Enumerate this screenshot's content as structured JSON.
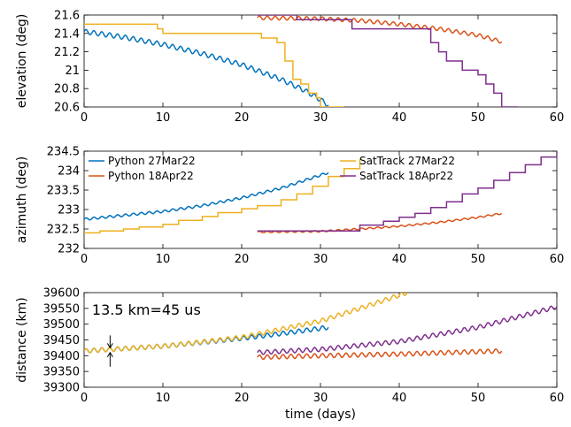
{
  "colors": {
    "python_27mar": "#0072bd",
    "python_18apr": "#d95319",
    "sattrack_27mar": "#edb120",
    "sattrack_18apr": "#7e2f8e"
  },
  "chart_data": [
    {
      "type": "line",
      "ylabel": "elevation (deg)",
      "xlabel": "",
      "xlim": [
        0,
        60
      ],
      "ylim": [
        20.6,
        21.6
      ],
      "xticks": [
        "0",
        "10",
        "20",
        "30",
        "40",
        "50",
        "60"
      ],
      "yticks": [
        "20.6",
        "20.8",
        "21",
        "21.2",
        "21.4",
        "21.6"
      ],
      "grid": false,
      "series": [
        {
          "name": "Python 27Mar22",
          "color": "#0072bd",
          "oscillation_amplitude": 0.025,
          "oscillation_period_days": 1,
          "x": [
            0,
            5,
            10,
            15,
            20,
            25,
            28,
            30,
            31
          ],
          "y": [
            21.42,
            21.36,
            21.28,
            21.18,
            21.06,
            20.9,
            20.78,
            20.68,
            20.62
          ]
        },
        {
          "name": "Python 18Apr22",
          "color": "#d95319",
          "oscillation_amplitude": 0.02,
          "oscillation_period_days": 1,
          "x": [
            22,
            30,
            35,
            40,
            45,
            50,
            53
          ],
          "y": [
            21.57,
            21.56,
            21.54,
            21.5,
            21.45,
            21.38,
            21.31
          ]
        },
        {
          "name": "SatTrack 27Mar22",
          "color": "#edb120",
          "step": true,
          "x": [
            0,
            9,
            9.3,
            10,
            22,
            22.5,
            24.5,
            25.5,
            26.5,
            27.5,
            28.5,
            29.5,
            30,
            33
          ],
          "y": [
            21.5,
            21.5,
            21.45,
            21.4,
            21.4,
            21.35,
            21.3,
            21.1,
            20.9,
            20.85,
            20.75,
            20.7,
            20.6,
            20.6
          ]
        },
        {
          "name": "SatTrack 18Apr22",
          "color": "#7e2f8e",
          "step": true,
          "x": [
            22,
            26,
            27,
            33,
            34,
            40,
            44,
            45,
            46,
            48,
            50,
            51,
            52,
            53,
            55
          ],
          "y": [
            21.6,
            21.6,
            21.55,
            21.55,
            21.45,
            21.45,
            21.3,
            21.2,
            21.1,
            21.0,
            20.95,
            20.85,
            20.75,
            20.6,
            20.6
          ]
        }
      ]
    },
    {
      "type": "line",
      "ylabel": "azimuth (deg)",
      "xlabel": "",
      "xlim": [
        0,
        60
      ],
      "ylim": [
        232,
        234.5
      ],
      "xticks": [
        "0",
        "10",
        "20",
        "30",
        "40",
        "50",
        "60"
      ],
      "yticks": [
        "232",
        "232.5",
        "233",
        "233.5",
        "234",
        "234.5"
      ],
      "grid": false,
      "legend": "top, two columns",
      "series": [
        {
          "name": "Python 27Mar22",
          "color": "#0072bd",
          "oscillation_amplitude": 0.03,
          "oscillation_period_days": 1,
          "x": [
            0,
            5,
            10,
            15,
            20,
            25,
            31
          ],
          "y": [
            232.75,
            232.85,
            232.95,
            233.1,
            233.3,
            233.55,
            233.95
          ]
        },
        {
          "name": "Python 18Apr22",
          "color": "#d95319",
          "oscillation_amplitude": 0.02,
          "oscillation_period_days": 1,
          "x": [
            22,
            30,
            35,
            40,
            45,
            50,
            53
          ],
          "y": [
            232.42,
            232.44,
            232.5,
            232.57,
            232.67,
            232.8,
            232.9
          ]
        },
        {
          "name": "SatTrack 27Mar22",
          "color": "#edb120",
          "step": true,
          "x": [
            0,
            2,
            5,
            7,
            10,
            12,
            15,
            17,
            20,
            22,
            25,
            27,
            29,
            31,
            33,
            35
          ],
          "y": [
            232.4,
            232.45,
            232.5,
            232.55,
            232.62,
            232.72,
            232.82,
            232.92,
            233.02,
            233.1,
            233.25,
            233.4,
            233.6,
            233.85,
            234.05,
            234.3
          ]
        },
        {
          "name": "SatTrack 18Apr22",
          "color": "#7e2f8e",
          "step": true,
          "x": [
            22,
            30,
            35,
            38,
            40,
            42,
            44,
            46,
            48,
            50,
            52,
            54,
            56,
            58,
            60
          ],
          "y": [
            232.45,
            232.45,
            232.6,
            232.7,
            232.8,
            232.9,
            233.05,
            233.2,
            233.4,
            233.55,
            233.75,
            233.95,
            234.15,
            234.35,
            234.5
          ]
        }
      ]
    },
    {
      "type": "line",
      "ylabel": "distance (km)",
      "xlabel": "time (days)",
      "xlim": [
        0,
        60
      ],
      "ylim": [
        39300,
        39600
      ],
      "xticks": [
        "0",
        "10",
        "20",
        "30",
        "40",
        "50",
        "60"
      ],
      "yticks": [
        "39300",
        "39350",
        "39400",
        "39450",
        "39500",
        "39550",
        "39600"
      ],
      "grid": false,
      "annotations": [
        {
          "text": "13.5 km=45 us",
          "x": 1,
          "y": 39530
        },
        {
          "text": "",
          "type": "double-arrow",
          "x": 3.3,
          "y_from": 39410,
          "y_to": 39425
        }
      ],
      "series": [
        {
          "name": "Python 27Mar22",
          "color": "#0072bd",
          "oscillation_amplitude": 6.75,
          "oscillation_period_days": 1,
          "x": [
            0,
            10,
            20,
            25,
            31
          ],
          "y": [
            39415,
            39430,
            39455,
            39470,
            39490
          ]
        },
        {
          "name": "Python 18Apr22",
          "color": "#d95319",
          "oscillation_amplitude": 6.75,
          "oscillation_period_days": 1,
          "x": [
            22,
            30,
            40,
            53
          ],
          "y": [
            39395,
            39400,
            39405,
            39415
          ]
        },
        {
          "name": "SatTrack 27Mar22",
          "color": "#edb120",
          "oscillation_amplitude": 6.75,
          "oscillation_period_days": 1,
          "x": [
            0,
            10,
            20,
            30,
            35,
            41
          ],
          "y": [
            39415,
            39430,
            39458,
            39510,
            39550,
            39600
          ]
        },
        {
          "name": "SatTrack 18Apr22",
          "color": "#7e2f8e",
          "oscillation_amplitude": 6.75,
          "oscillation_period_days": 1,
          "x": [
            22,
            30,
            40,
            50,
            60
          ],
          "y": [
            39410,
            39420,
            39445,
            39490,
            39555
          ]
        }
      ]
    }
  ]
}
